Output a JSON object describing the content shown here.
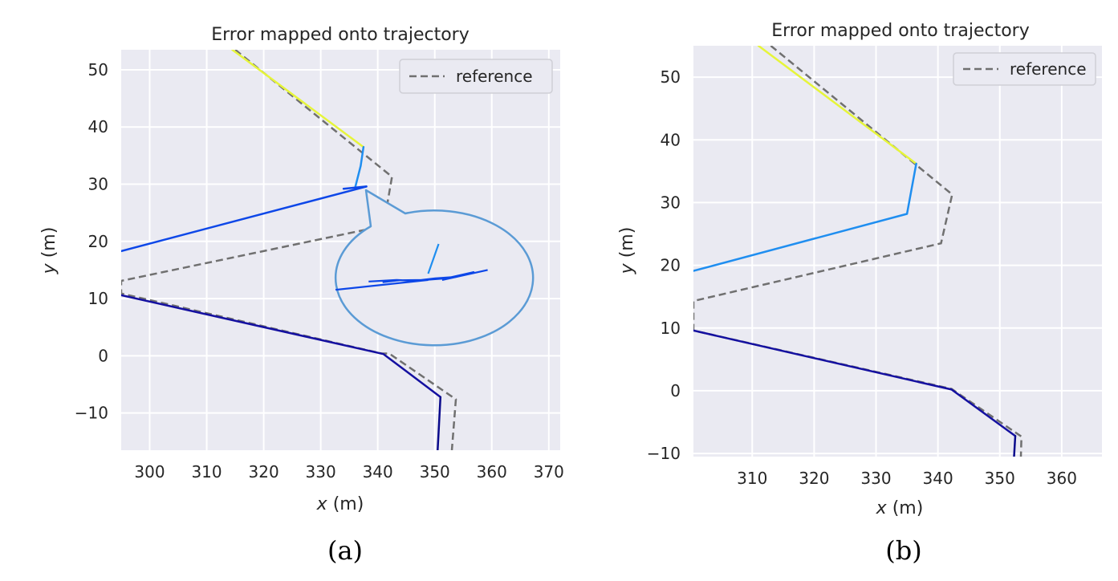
{
  "chart_data": [
    {
      "id": "a",
      "type": "line",
      "title": "Error mapped onto trajectory",
      "xlabel": "x (m)",
      "ylabel": "y (m)",
      "xlabel_var": "x",
      "ylabel_var": "y",
      "unit": "(m)",
      "caption": "(a)",
      "xlim": [
        295,
        372
      ],
      "ylim": [
        -16.5,
        53.5
      ],
      "xticks": [
        300,
        310,
        320,
        330,
        340,
        350,
        360,
        370
      ],
      "yticks": [
        -10,
        0,
        10,
        20,
        30,
        40,
        50
      ],
      "grid": true,
      "background": "#eaeaf2",
      "legend": {
        "placement": "top-right",
        "entries": [
          {
            "label": "reference",
            "style": "dashed",
            "color": "#707070"
          }
        ]
      },
      "reference": {
        "name": "reference",
        "color": "#707070",
        "dashed": true,
        "points": [
          [
            315,
            53.5
          ],
          [
            342.5,
            31.3
          ],
          [
            341,
            22.7
          ],
          [
            295,
            13.1
          ],
          [
            295,
            10.9
          ],
          [
            340.7,
            0.4
          ],
          [
            342,
            0.4
          ],
          [
            353.7,
            -7.6
          ],
          [
            353,
            -16.5
          ]
        ]
      },
      "trajectory": [
        {
          "color": "#e6f53a",
          "points": [
            [
              314.5,
              53.5
            ],
            [
              337.5,
              36.5
            ]
          ]
        },
        {
          "color": "#1f8ef0",
          "points": [
            [
              337.5,
              36.5
            ],
            [
              337,
              33.2
            ],
            [
              336,
              29.3
            ]
          ]
        },
        {
          "color": "#0d47e8",
          "points": [
            [
              334,
              29.2
            ],
            [
              338,
              29.6
            ]
          ]
        },
        {
          "color": "#0d47e8",
          "points": [
            [
              338,
              29.6
            ],
            [
              295,
              18.3
            ]
          ]
        },
        {
          "color": "#1410a0",
          "points": [
            [
              295,
              10.6
            ],
            [
              341,
              0.3
            ],
            [
              351,
              -7.2
            ]
          ]
        },
        {
          "color": "#0a0a8c",
          "points": [
            [
              351,
              -7.2
            ],
            [
              350.5,
              -16.5
            ]
          ]
        }
      ],
      "inset": {
        "xlim": [
          333.5,
          339
        ],
        "ylim": [
          28.3,
          30.4
        ],
        "outline_color": "#5b9bd5",
        "segments": [
          {
            "color": "#1f8ef0",
            "points": [
              [
                336.4,
                30.35
              ],
              [
                336.1,
                29.4
              ]
            ]
          },
          {
            "color": "#0d47e8",
            "points": [
              [
                334.4,
                29.15
              ],
              [
                335.2,
                29.2
              ],
              [
                335.7,
                29.17
              ],
              [
                336.3,
                29.25
              ],
              [
                336.9,
                29.3
              ],
              [
                337.4,
                29.45
              ],
              [
                336.6,
                29.25
              ],
              [
                336,
                29.2
              ],
              [
                335.3,
                29.19
              ],
              [
                334.8,
                29.13
              ]
            ]
          },
          {
            "color": "#0d47e8",
            "points": [
              [
                336.5,
                29.2
              ],
              [
                337.8,
                29.52
              ]
            ]
          },
          {
            "color": "#0d47e8",
            "points": [
              [
                336.1,
                29.2
              ],
              [
                330.2,
                28.5
              ]
            ]
          }
        ]
      }
    },
    {
      "id": "b",
      "type": "line",
      "title": "Error mapped onto trajectory",
      "xlabel": "x (m)",
      "ylabel": "y (m)",
      "xlabel_var": "x",
      "ylabel_var": "y",
      "unit": "(m)",
      "caption": "(b)",
      "xlim": [
        300.5,
        366.5
      ],
      "ylim": [
        -10.5,
        55
      ],
      "xticks": [
        310,
        320,
        330,
        340,
        350,
        360
      ],
      "yticks": [
        -10,
        0,
        10,
        20,
        30,
        40,
        50
      ],
      "grid": true,
      "background": "#eaeaf2",
      "legend": {
        "placement": "top-right",
        "entries": [
          {
            "label": "reference",
            "style": "dashed",
            "color": "#707070"
          }
        ]
      },
      "reference": {
        "name": "reference",
        "color": "#707070",
        "dashed": true,
        "points": [
          [
            313,
            55
          ],
          [
            342.3,
            31.3
          ],
          [
            340.5,
            23.5
          ],
          [
            300.5,
            14.3
          ],
          [
            300.5,
            9.6
          ],
          [
            342.2,
            0.3
          ],
          [
            353.5,
            -7.3
          ],
          [
            353.4,
            -10.5
          ]
        ]
      },
      "trajectory": [
        {
          "color": "#e6f53a",
          "points": [
            [
              311,
              55
            ],
            [
              336.5,
              36.2
            ]
          ]
        },
        {
          "color": "#1f8ef0",
          "points": [
            [
              336.5,
              36.2
            ],
            [
              335,
              28.2
            ],
            [
              300.5,
              19.1
            ]
          ]
        },
        {
          "color": "#1410a0",
          "points": [
            [
              300.5,
              9.6
            ],
            [
              342.2,
              0.2
            ],
            [
              352.5,
              -7.2
            ]
          ]
        },
        {
          "color": "#0a0a8c",
          "points": [
            [
              352.5,
              -7.2
            ],
            [
              352.3,
              -10.5
            ]
          ]
        }
      ]
    }
  ]
}
